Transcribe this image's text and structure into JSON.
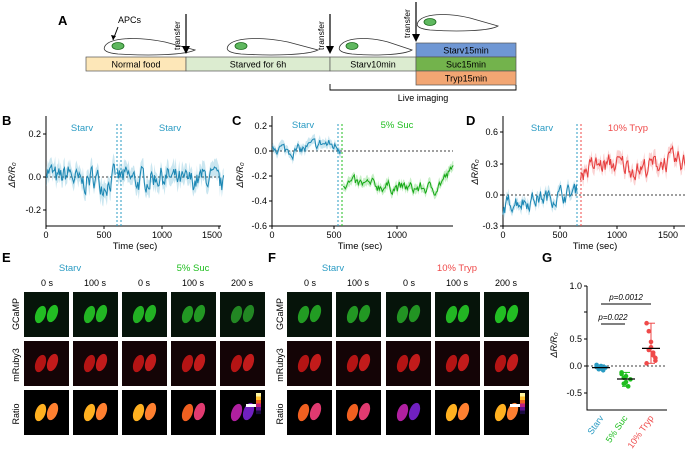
{
  "panel_labels": {
    "a": "A",
    "b": "B",
    "c": "C",
    "d": "D",
    "e": "E",
    "f": "F",
    "g": "G"
  },
  "panel_a": {
    "apcs": "APCs",
    "transfer": "transfer",
    "stages": [
      "Normal food",
      "Starved for 6h",
      "Starv10min"
    ],
    "final_stages": [
      "Starv15min",
      "Suc15min",
      "Tryp15min"
    ],
    "live_imaging": "Live imaging"
  },
  "panel_b": {
    "cond_left": "Starv",
    "cond_right": "Starv",
    "xlabel": "Time (sec)",
    "ylabel": "ΔR/R₀",
    "xticks": [
      "0",
      "500",
      "1000",
      "1500"
    ],
    "yticks": [
      "0.2",
      "0.0",
      "-0.2"
    ]
  },
  "panel_c": {
    "cond_left": "Starv",
    "cond_right": "5% Suc",
    "xlabel": "Time (sec)",
    "ylabel": "ΔR/R₀",
    "xticks": [
      "0",
      "500",
      "1000"
    ],
    "yticks": [
      "0.2",
      "0.0",
      "-0.2",
      "-0.4",
      "-0.6"
    ]
  },
  "panel_d": {
    "cond_left": "Starv",
    "cond_right": "10% Tryp",
    "xlabel": "Time (sec)",
    "ylabel": "ΔR/R₀",
    "xticks": [
      "0",
      "500",
      "1000",
      "1500"
    ],
    "yticks": [
      "0.6",
      "0.3",
      "0.0",
      "-0.3"
    ]
  },
  "panel_e": {
    "cond_left": "Starv",
    "cond_right": "5% Suc",
    "times_left": [
      "0 s",
      "100 s"
    ],
    "times_right": [
      "0 s",
      "100 s",
      "200 s"
    ],
    "rows": [
      "GCaMP",
      "mRuby3",
      "Ratio"
    ]
  },
  "panel_f": {
    "cond_left": "Starv",
    "cond_right": "10% Tryp",
    "times_left": [
      "0 s",
      "100 s"
    ],
    "times_right": [
      "0 s",
      "100 s",
      "200 s"
    ],
    "rows": [
      "GCaMP",
      "mRuby3",
      "Ratio"
    ]
  },
  "panel_g": {
    "ylabel": "ΔR/R₀",
    "yticks": [
      "1.0",
      "0.5",
      "0.0",
      "-0.5"
    ],
    "categories": [
      "Starv",
      "5% Suc",
      "10% Tryp"
    ],
    "p1": "p=0.022",
    "p2": "p=0.0012"
  },
  "colors": {
    "starv": "#2a9bc3",
    "suc": "#1fbe1f",
    "tryp": "#ef4a4a"
  },
  "chart_data": [
    {
      "type": "line",
      "panel": "B",
      "x_range": [
        0,
        1550
      ],
      "ylim": [
        -0.25,
        0.25
      ],
      "series": [
        {
          "name": "Starv",
          "x": [
            0,
            100,
            200,
            300,
            400,
            500,
            600
          ],
          "y": [
            0.05,
            -0.02,
            0.02,
            -0.04,
            0.0,
            -0.03,
            0.0
          ]
        },
        {
          "name": "Starv",
          "x": [
            620,
            800,
            1000,
            1200,
            1400,
            1540
          ],
          "y": [
            0.0,
            -0.02,
            0.01,
            -0.03,
            0.0,
            -0.05
          ]
        }
      ]
    },
    {
      "type": "line",
      "panel": "C",
      "x_range": [
        0,
        1450
      ],
      "ylim": [
        -0.6,
        0.25
      ],
      "series": [
        {
          "name": "Starv",
          "x": [
            0,
            100,
            200,
            300,
            400,
            500,
            550
          ],
          "y": [
            0.05,
            0.01,
            0.0,
            0.03,
            0.06,
            0.04,
            0.02
          ]
        },
        {
          "name": "5% Suc",
          "x": [
            570,
            700,
            900,
            1100,
            1300,
            1450
          ],
          "y": [
            -0.25,
            -0.27,
            -0.28,
            -0.3,
            -0.3,
            -0.15
          ]
        }
      ]
    },
    {
      "type": "line",
      "panel": "D",
      "x_range": [
        0,
        1600
      ],
      "ylim": [
        -0.3,
        0.7
      ],
      "series": [
        {
          "name": "Starv",
          "x": [
            0,
            100,
            200,
            300,
            400,
            500,
            600,
            650
          ],
          "y": [
            -0.12,
            -0.05,
            -0.06,
            -0.03,
            -0.02,
            0.0,
            0.02,
            0.05
          ]
        },
        {
          "name": "10% Tryp",
          "x": [
            680,
            800,
            1000,
            1200,
            1400,
            1600
          ],
          "y": [
            0.22,
            0.28,
            0.3,
            0.25,
            0.32,
            0.32
          ]
        }
      ]
    },
    {
      "type": "scatter",
      "panel": "G",
      "categories": [
        "Starv",
        "5% Suc",
        "10% Tryp"
      ],
      "ylim": [
        -0.6,
        1.0
      ],
      "series": [
        {
          "name": "Starv",
          "values": [
            -0.02,
            -0.05,
            0.0,
            -0.08,
            -0.03,
            0.02,
            -0.06,
            -0.01,
            -0.04
          ]
        },
        {
          "name": "5% Suc",
          "values": [
            -0.15,
            -0.22,
            -0.3,
            -0.38,
            -0.25,
            -0.12,
            -0.33,
            -0.19
          ]
        },
        {
          "name": "10% Tryp",
          "values": [
            0.8,
            0.65,
            0.35,
            0.2,
            0.15,
            0.05,
            0.3,
            0.45,
            0.25,
            0.1
          ]
        }
      ]
    }
  ]
}
